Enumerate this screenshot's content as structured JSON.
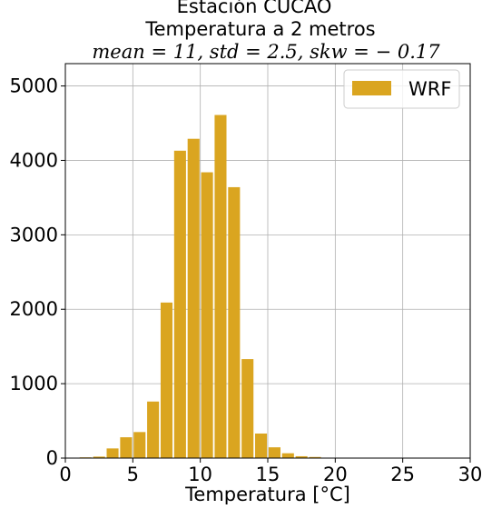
{
  "chart_data": {
    "type": "bar",
    "title_lines": [
      "Estación CUCAO",
      "Temperatura a 2 metros",
      "mean = 11, std = 2.5, skw = − 0.17"
    ],
    "xlabel": "Temperatura [°C]",
    "ylabel": "",
    "xlim": [
      0,
      30
    ],
    "ylim": [
      0,
      5300
    ],
    "xticks": [
      0,
      5,
      10,
      15,
      20,
      25,
      30
    ],
    "yticks": [
      0,
      1000,
      2000,
      3000,
      4000,
      5000
    ],
    "grid": true,
    "legend": {
      "position": "top-right",
      "entries": [
        "WRF"
      ]
    },
    "bar_color": "#daa520",
    "bin_width": 1,
    "series": [
      {
        "name": "WRF",
        "x": [
          1.5,
          2.5,
          3.5,
          4.5,
          5.5,
          6.5,
          7.5,
          8.5,
          9.5,
          10.5,
          11.5,
          12.5,
          13.5,
          14.5,
          15.5,
          16.5,
          17.5,
          18.5,
          19.5,
          20.5
        ],
        "values": [
          10,
          20,
          130,
          280,
          350,
          760,
          2090,
          4130,
          4290,
          3840,
          4610,
          3640,
          1330,
          330,
          145,
          65,
          25,
          15,
          5,
          2
        ]
      }
    ]
  }
}
